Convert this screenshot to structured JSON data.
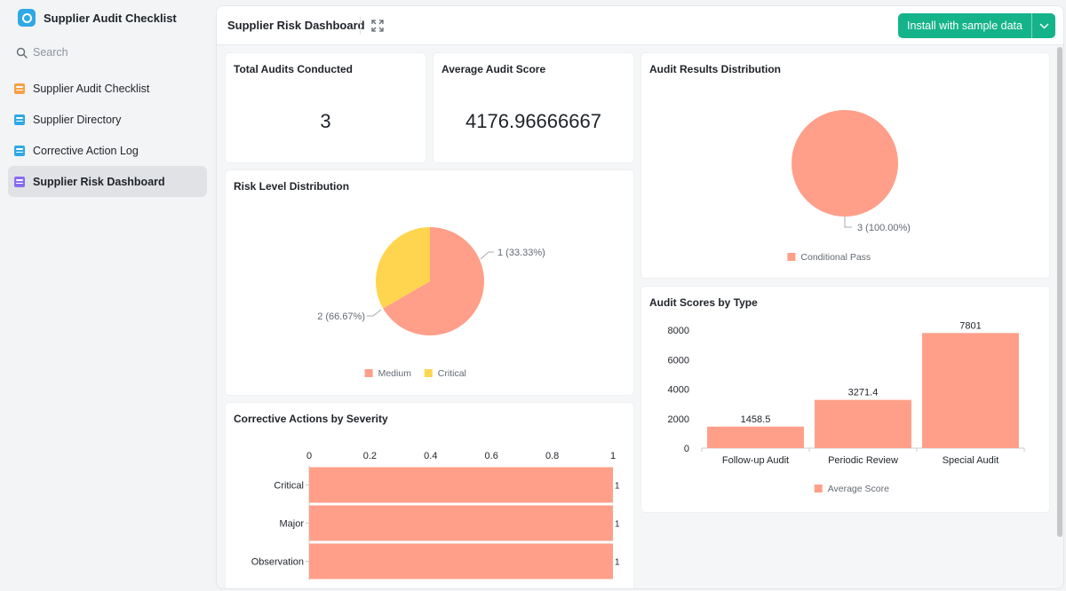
{
  "sidebar": {
    "app_title": "Supplier Audit Checklist",
    "search_placeholder": "Search",
    "items": [
      {
        "label": "Supplier Audit Checklist",
        "icon": "bar-chart-icon"
      },
      {
        "label": "Supplier Directory",
        "icon": "table-icon"
      },
      {
        "label": "Corrective Action Log",
        "icon": "table-icon"
      },
      {
        "label": "Supplier Risk Dashboard",
        "icon": "dashboard-icon"
      }
    ],
    "active_index": 3
  },
  "header": {
    "title": "Supplier Risk Dashboard",
    "install_label": "Install with sample data"
  },
  "cards": {
    "total_audits": {
      "title": "Total Audits Conducted",
      "value": "3"
    },
    "average_score": {
      "title": "Average Audit Score",
      "value": "4176.96666667"
    },
    "audit_results": {
      "title": "Audit Results Distribution"
    },
    "risk_level": {
      "title": "Risk Level Distribution"
    },
    "audit_scores": {
      "title": "Audit Scores by Type"
    },
    "corrective_actions": {
      "title": "Corrective Actions by Severity"
    }
  },
  "colors": {
    "salmon": "#ff9f89",
    "yellow": "#ffd54f",
    "accent": "#15b38a"
  },
  "chart_data": [
    {
      "id": "audit_results",
      "type": "pie",
      "title": "Audit Results Distribution",
      "slices": [
        {
          "name": "Conditional Pass",
          "value": 3,
          "label": "3 (100.00%)"
        }
      ],
      "legend": [
        "Conditional Pass"
      ],
      "legend_position": "bottom"
    },
    {
      "id": "risk_level",
      "type": "pie",
      "title": "Risk Level Distribution",
      "slices": [
        {
          "name": "Medium",
          "value": 2,
          "label": "2 (66.67%)"
        },
        {
          "name": "Critical",
          "value": 1,
          "label": "1 (33.33%)"
        }
      ],
      "legend": [
        "Medium",
        "Critical"
      ],
      "legend_position": "bottom"
    },
    {
      "id": "audit_scores",
      "type": "bar",
      "title": "Audit Scores by Type",
      "categories": [
        "Follow-up Audit",
        "Periodic Review",
        "Special Audit"
      ],
      "series": [
        {
          "name": "Average Score",
          "values": [
            1458.5,
            3271.4,
            7801
          ]
        }
      ],
      "data_labels": [
        "1458.5",
        "3271.4",
        "7801"
      ],
      "y_ticks": [
        "0",
        "2000",
        "4000",
        "6000",
        "8000"
      ],
      "ylim": [
        0,
        8000
      ],
      "legend_position": "bottom"
    },
    {
      "id": "corrective_actions",
      "type": "bar",
      "orientation": "horizontal",
      "title": "Corrective Actions by Severity",
      "categories": [
        "Critical",
        "Major",
        "Observation"
      ],
      "values": [
        1,
        1,
        1
      ],
      "data_labels": [
        "1",
        "1",
        "1"
      ],
      "x_ticks": [
        "0",
        "0.2",
        "0.4",
        "0.6",
        "0.8",
        "1"
      ],
      "xlim": [
        0,
        1
      ]
    }
  ]
}
